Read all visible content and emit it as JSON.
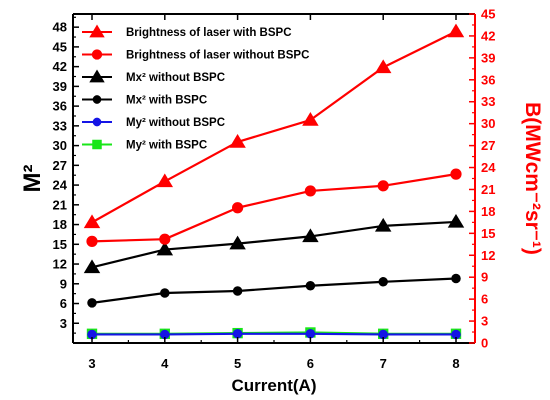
{
  "chart_data": {
    "type": "line",
    "x": [
      3,
      4,
      5,
      6,
      7,
      8
    ],
    "xlabel": "Current(A)",
    "xlim": [
      3,
      8
    ],
    "ylabel_left": "M²",
    "ylim_left": [
      0,
      50
    ],
    "yticks_left": [
      3,
      6,
      9,
      12,
      15,
      18,
      21,
      24,
      27,
      30,
      33,
      36,
      39,
      42,
      45,
      48
    ],
    "ylabel_right": "B(MWcm⁻²sr⁻¹)",
    "ylim_right": [
      0,
      45
    ],
    "yticks_right": [
      0,
      3,
      6,
      9,
      12,
      15,
      18,
      21,
      24,
      27,
      30,
      33,
      36,
      39,
      42,
      45
    ],
    "grid": false,
    "legend_position": "top-left",
    "series": [
      {
        "name": "Brightness of laser with BSPC",
        "axis": "right",
        "marker": "triangle",
        "color": "#ff0000",
        "values": [
          16.5,
          22.1,
          27.5,
          30.5,
          37.7,
          42.6
        ]
      },
      {
        "name": "Brightness of laser without BSPC",
        "axis": "right",
        "marker": "circle",
        "color": "#ff0000",
        "values": [
          13.9,
          14.2,
          18.5,
          20.8,
          21.5,
          23.1
        ]
      },
      {
        "name": "Mx² without BSPC",
        "axis": "left",
        "marker": "triangle",
        "color": "#000000",
        "values": [
          11.5,
          14.2,
          15.1,
          16.2,
          17.8,
          18.4
        ]
      },
      {
        "name": "Mx² with BSPC",
        "axis": "left",
        "marker": "circle",
        "color": "#000000",
        "values": [
          6.1,
          7.6,
          7.9,
          8.7,
          9.3,
          9.8
        ]
      },
      {
        "name": "My² without BSPC",
        "axis": "left",
        "marker": "circle",
        "color": "#1515e6",
        "values": [
          1.3,
          1.3,
          1.4,
          1.4,
          1.3,
          1.3
        ]
      },
      {
        "name": "My² with BSPC",
        "axis": "left",
        "marker": "square",
        "color": "#19e619",
        "values": [
          1.4,
          1.4,
          1.5,
          1.6,
          1.4,
          1.4
        ]
      }
    ]
  }
}
